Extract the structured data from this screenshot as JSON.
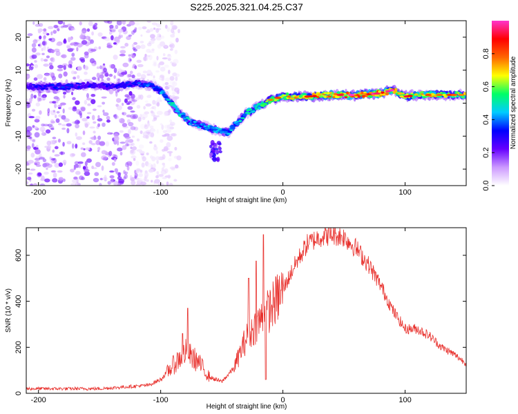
{
  "chart_data": [
    {
      "type": "heatmap",
      "title": "S225.2025.321.04.25.C37",
      "xlabel": "Height of straight line (km)",
      "ylabel": "Frequency (Hz)",
      "xlim": [
        -210,
        150
      ],
      "ylim": [
        -25,
        25
      ],
      "xticks": [
        -200,
        -100,
        0,
        100
      ],
      "yticks": [
        -20,
        -10,
        0,
        10,
        20
      ],
      "colorbar": {
        "label": "Normalized spectral amplitude",
        "range": [
          0,
          1
        ],
        "ticks": [
          "0.0",
          "0.2",
          "0.4",
          "0.6",
          "0.8"
        ],
        "colors": [
          "#ffffff",
          "#cc99ff",
          "#6600ff",
          "#0000ff",
          "#00ccff",
          "#00ff66",
          "#ffff00",
          "#ff6600",
          "#ff0000",
          "#ff33cc"
        ]
      },
      "ridge": {
        "x": [
          -210,
          -180,
          -160,
          -140,
          -120,
          -105,
          -95,
          -85,
          -75,
          -65,
          -55,
          -45,
          -38,
          -30,
          -20,
          -10,
          0,
          20,
          40,
          60,
          80,
          90,
          100,
          110,
          130,
          150
        ],
        "freq": [
          5,
          5,
          5.5,
          5,
          6,
          5,
          2,
          -3,
          -6,
          -7,
          -8,
          -9,
          -6,
          -3,
          -1,
          1,
          2,
          2,
          2.5,
          2.5,
          3,
          4,
          2,
          2.5,
          2.5,
          2.5
        ],
        "amplitude": [
          0.3,
          0.35,
          0.3,
          0.3,
          0.35,
          0.4,
          0.45,
          0.5,
          0.45,
          0.4,
          0.5,
          0.45,
          0.45,
          0.5,
          0.55,
          0.6,
          0.65,
          0.75,
          0.75,
          0.85,
          0.85,
          0.8,
          0.75,
          0.7,
          0.65,
          0.65
        ]
      },
      "secondary_blob": {
        "x": -55,
        "freq": -15,
        "amplitude": 0.3
      },
      "noise_region": {
        "x_min": -210,
        "x_max": -100,
        "amplitude": 0.15
      }
    },
    {
      "type": "line",
      "title": "",
      "xlabel": "Height of straight line (km)",
      "ylabel": "SNR (10 * v/v)",
      "xlim": [
        -210,
        150
      ],
      "ylim": [
        0,
        720
      ],
      "xticks": [
        -200,
        -100,
        0,
        100
      ],
      "yticks": [
        0,
        200,
        400,
        600
      ],
      "color": "#e8302c",
      "envelope": {
        "x": [
          -210,
          -150,
          -110,
          -100,
          -90,
          -80,
          -70,
          -60,
          -50,
          -40,
          -30,
          -20,
          -10,
          0,
          10,
          20,
          30,
          40,
          50,
          60,
          70,
          80,
          90,
          100,
          110,
          120,
          130,
          140,
          150
        ],
        "y": [
          20,
          20,
          35,
          60,
          120,
          180,
          140,
          70,
          50,
          110,
          240,
          310,
          370,
          450,
          560,
          650,
          680,
          690,
          680,
          630,
          560,
          470,
          360,
          280,
          280,
          250,
          200,
          170,
          130
        ]
      },
      "spikes": [
        {
          "x": -78,
          "y": 370
        },
        {
          "x": -82,
          "y": 260
        },
        {
          "x": -22,
          "y": 575
        },
        {
          "x": -16,
          "y": 690
        },
        {
          "x": -14,
          "y": 60
        },
        {
          "x": -28,
          "y": 500
        }
      ]
    }
  ]
}
